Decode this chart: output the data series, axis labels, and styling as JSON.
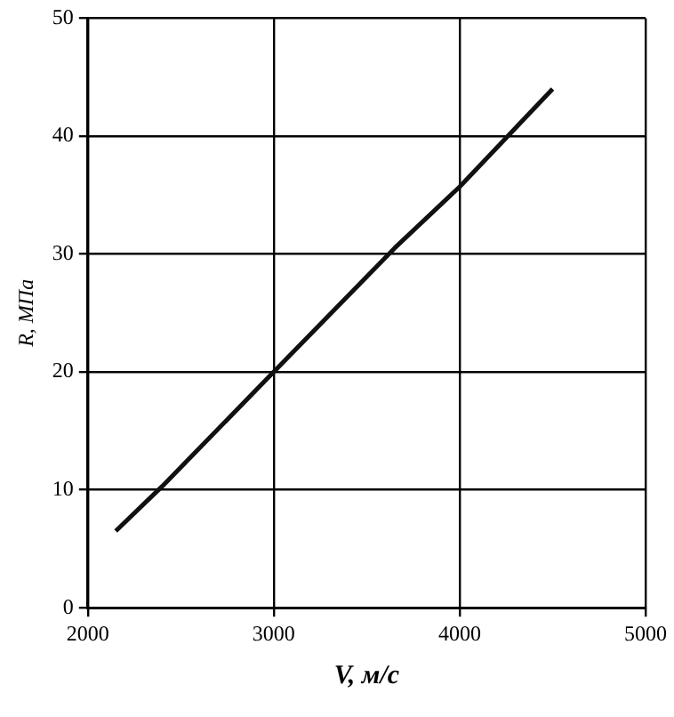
{
  "chart_data": {
    "type": "line",
    "xlabel": "V, м/с",
    "ylabel": "R, МПа",
    "x": [
      2150,
      2400,
      3000,
      3650,
      4000,
      4500
    ],
    "series": [
      {
        "color": "#111111",
        "values": [
          6.5,
          10.3,
          20,
          30.5,
          35.7,
          44
        ]
      }
    ],
    "xlim": [
      2000,
      5000
    ],
    "xticks": [
      2000,
      3000,
      4000,
      5000
    ],
    "ylim": [
      0,
      50
    ],
    "yticks": [
      0,
      10,
      20,
      30,
      40,
      50
    ],
    "grid": true,
    "legend": false,
    "marker": "none",
    "line_style": "solid"
  }
}
